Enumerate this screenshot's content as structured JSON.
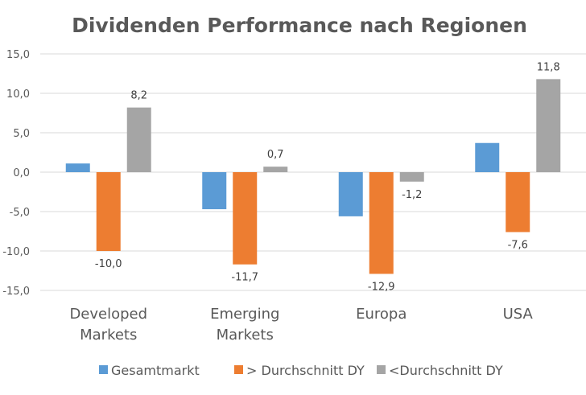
{
  "chart_data": {
    "type": "bar",
    "title": "Dividenden Performance nach Regionen",
    "xlabel": "",
    "ylabel": "",
    "ylim": [
      -15,
      15
    ],
    "yticks": [
      15,
      10,
      5,
      0,
      -5,
      -10,
      -15
    ],
    "ytick_labels": [
      "15,0",
      "10,0",
      "5,0",
      "0,0",
      "-5,0",
      "-10,0",
      "-15,0"
    ],
    "grid": true,
    "legend_position": "bottom",
    "categories": [
      [
        "Developed",
        "Markets"
      ],
      [
        "Emerging",
        "Markets"
      ],
      [
        "Europa"
      ],
      [
        "USA"
      ]
    ],
    "series": [
      {
        "name": "Gesamtmarkt",
        "color": "#5B9BD5",
        "values": [
          1.1,
          -4.7,
          -5.6,
          3.7
        ],
        "labels": [
          null,
          null,
          null,
          null
        ]
      },
      {
        "name": "> Durchschnitt DY",
        "color": "#ED7D31",
        "values": [
          -10.0,
          -11.7,
          -12.9,
          -7.6
        ],
        "labels": [
          "-10,0",
          "-11,7",
          "-12,9",
          "-7,6"
        ]
      },
      {
        "name": "<Durchschnitt DY",
        "color": "#A5A5A5",
        "values": [
          8.2,
          0.7,
          -1.2,
          11.8
        ],
        "labels": [
          "8,2",
          "0,7",
          "-1,2",
          "11,8"
        ]
      }
    ]
  }
}
